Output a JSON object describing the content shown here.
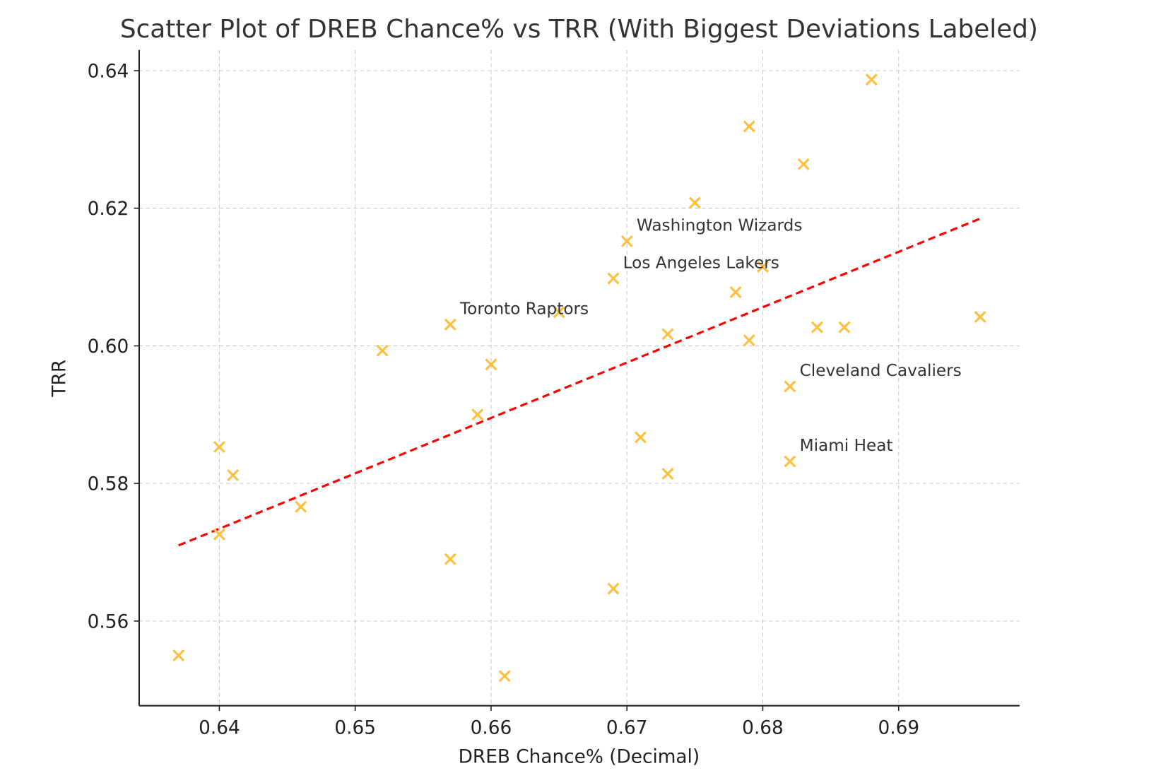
{
  "chart_data": {
    "type": "scatter",
    "title": "Scatter Plot of DREB Chance% vs TRR (With Biggest Deviations Labeled)",
    "xlabel": "DREB Chance% (Decimal)",
    "ylabel": "TRR",
    "xlim": [
      0.6341,
      0.6989
    ],
    "ylim": [
      0.5477,
      0.643
    ],
    "xticks": [
      "0.64",
      "0.65",
      "0.66",
      "0.67",
      "0.68",
      "0.69"
    ],
    "yticks": [
      "0.56",
      "0.58",
      "0.60",
      "0.62",
      "0.64"
    ],
    "grid": true,
    "marker": "x",
    "colors": {
      "points": "#ffbf40",
      "trend": "#ff0000",
      "grid": "#c8c8c8"
    },
    "points": [
      [
        0.637,
        0.555
      ],
      [
        0.64,
        0.5853
      ],
      [
        0.641,
        0.5812
      ],
      [
        0.64,
        0.5726
      ],
      [
        0.646,
        0.5766
      ],
      [
        0.652,
        0.5993
      ],
      [
        0.657,
        0.6031
      ],
      [
        0.657,
        0.569
      ],
      [
        0.659,
        0.59
      ],
      [
        0.66,
        0.5973
      ],
      [
        0.661,
        0.552
      ],
      [
        0.665,
        0.6049
      ],
      [
        0.669,
        0.6098
      ],
      [
        0.669,
        0.5647
      ],
      [
        0.67,
        0.6152
      ],
      [
        0.671,
        0.5867
      ],
      [
        0.673,
        0.6017
      ],
      [
        0.673,
        0.5814
      ],
      [
        0.675,
        0.6208
      ],
      [
        0.678,
        0.6078
      ],
      [
        0.679,
        0.6319
      ],
      [
        0.679,
        0.6008
      ],
      [
        0.68,
        0.6115
      ],
      [
        0.682,
        0.5941
      ],
      [
        0.682,
        0.5832
      ],
      [
        0.683,
        0.6264
      ],
      [
        0.684,
        0.6027
      ],
      [
        0.686,
        0.6027
      ],
      [
        0.688,
        0.6387
      ],
      [
        0.696,
        0.6042
      ]
    ],
    "trend_line": {
      "x": [
        0.637,
        0.696
      ],
      "y": [
        0.571,
        0.6185
      ]
    },
    "annotations": [
      {
        "text": "Washington Wizards",
        "x": 0.67,
        "y": 0.6152
      },
      {
        "text": "Los Angeles Lakers",
        "x": 0.669,
        "y": 0.6098
      },
      {
        "text": "Toronto Raptors",
        "x": 0.657,
        "y": 0.6031
      },
      {
        "text": "Cleveland Cavaliers",
        "x": 0.682,
        "y": 0.5941
      },
      {
        "text": "Miami Heat",
        "x": 0.682,
        "y": 0.5832
      }
    ]
  }
}
